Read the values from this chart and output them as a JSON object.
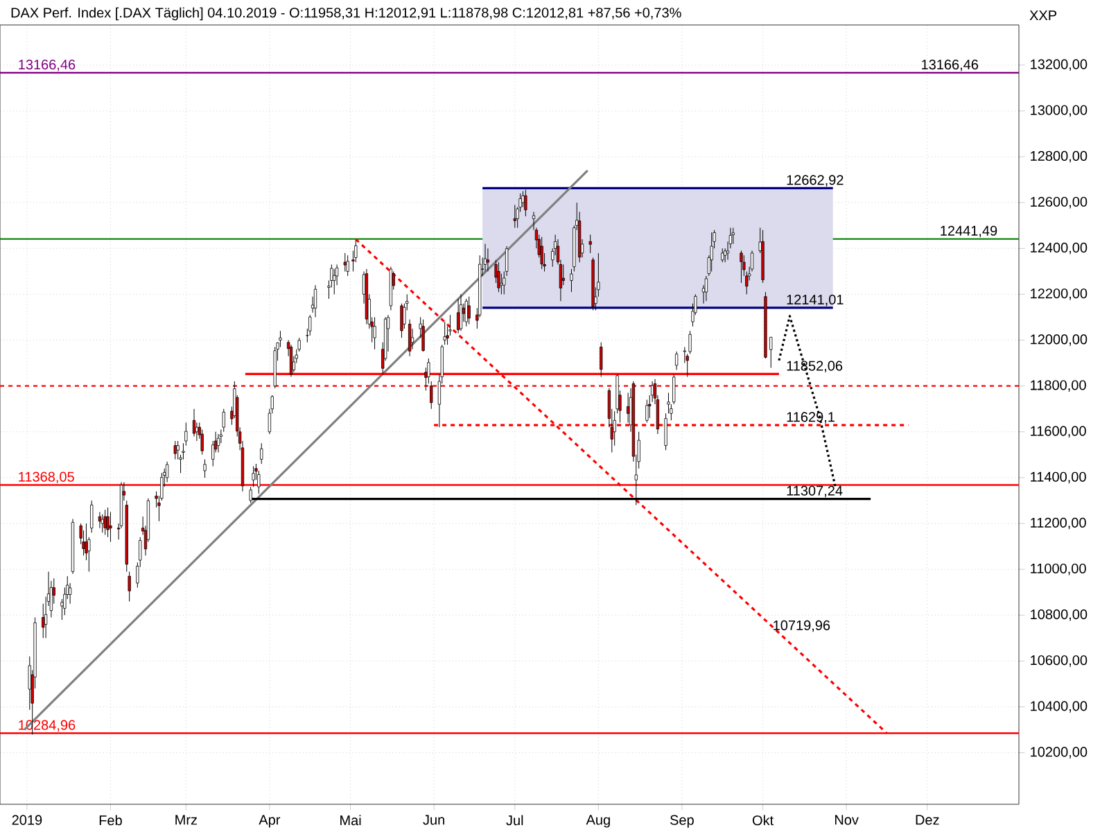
{
  "chart_data": {
    "type": "candlestick",
    "title": "DAX Perf. Index [.DAX  Täglich] 04.10.2019 - O:11958,31 H:12012,91 L:11878,98 C:12012,81 +87,56 +0,73%",
    "ylabel": "XXP",
    "xlim": [
      "2018-12-22",
      "2020-01-04"
    ],
    "ylim": [
      9975,
      13375
    ],
    "xticks": [
      {
        "value": "2019-01-01",
        "label": "2019"
      },
      {
        "value": "2019-02-01",
        "label": "Feb"
      },
      {
        "value": "2019-03-01",
        "label": "Mrz"
      },
      {
        "value": "2019-04-01",
        "label": "Apr"
      },
      {
        "value": "2019-05-01",
        "label": "Mai"
      },
      {
        "value": "2019-06-01",
        "label": "Jun"
      },
      {
        "value": "2019-07-01",
        "label": "Jul"
      },
      {
        "value": "2019-08-01",
        "label": "Aug"
      },
      {
        "value": "2019-09-01",
        "label": "Sep"
      },
      {
        "value": "2019-10-01",
        "label": "Okt"
      },
      {
        "value": "2019-11-01",
        "label": "Nov"
      },
      {
        "value": "2019-12-01",
        "label": "Dez"
      }
    ],
    "yticks": [
      {
        "value": 10200,
        "label": "10200,00"
      },
      {
        "value": 10400,
        "label": "10400,00"
      },
      {
        "value": 10600,
        "label": "10600,00"
      },
      {
        "value": 10800,
        "label": "10800,00"
      },
      {
        "value": 11000,
        "label": "11000,00"
      },
      {
        "value": 11200,
        "label": "11200,00"
      },
      {
        "value": 11400,
        "label": "11400,00"
      },
      {
        "value": 11600,
        "label": "11600,00"
      },
      {
        "value": 11800,
        "label": "11800,00"
      },
      {
        "value": 12000,
        "label": "12000,00"
      },
      {
        "value": 12200,
        "label": "12200,00"
      },
      {
        "value": 12400,
        "label": "12400,00"
      },
      {
        "value": 12600,
        "label": "12600,00"
      },
      {
        "value": 12800,
        "label": "12800,00"
      },
      {
        "value": 13000,
        "label": "13000,00"
      },
      {
        "value": 13200,
        "label": "13200,00"
      }
    ],
    "grid": true,
    "x": [
      "2019-01-02",
      "2019-01-03",
      "2019-01-04",
      "2019-01-07",
      "2019-01-08",
      "2019-01-09",
      "2019-01-10",
      "2019-01-11",
      "2019-01-14",
      "2019-01-15",
      "2019-01-16",
      "2019-01-17",
      "2019-01-18",
      "2019-01-21",
      "2019-01-22",
      "2019-01-23",
      "2019-01-24",
      "2019-01-25",
      "2019-01-28",
      "2019-01-29",
      "2019-01-30",
      "2019-01-31",
      "2019-02-01",
      "2019-02-04",
      "2019-02-05",
      "2019-02-06",
      "2019-02-07",
      "2019-02-08",
      "2019-02-11",
      "2019-02-12",
      "2019-02-13",
      "2019-02-14",
      "2019-02-15",
      "2019-02-18",
      "2019-02-19",
      "2019-02-20",
      "2019-02-21",
      "2019-02-22",
      "2019-02-25",
      "2019-02-26",
      "2019-02-27",
      "2019-02-28",
      "2019-03-01",
      "2019-03-04",
      "2019-03-05",
      "2019-03-06",
      "2019-03-07",
      "2019-03-08",
      "2019-03-11",
      "2019-03-12",
      "2019-03-13",
      "2019-03-14",
      "2019-03-15",
      "2019-03-18",
      "2019-03-19",
      "2019-03-20",
      "2019-03-21",
      "2019-03-22",
      "2019-03-25",
      "2019-03-26",
      "2019-03-27",
      "2019-03-28",
      "2019-03-29",
      "2019-04-01",
      "2019-04-02",
      "2019-04-03",
      "2019-04-04",
      "2019-04-05",
      "2019-04-08",
      "2019-04-09",
      "2019-04-10",
      "2019-04-11",
      "2019-04-12",
      "2019-04-15",
      "2019-04-16",
      "2019-04-17",
      "2019-04-18",
      "2019-04-23",
      "2019-04-24",
      "2019-04-25",
      "2019-04-26",
      "2019-04-29",
      "2019-04-30",
      "2019-05-02",
      "2019-05-03",
      "2019-05-06",
      "2019-05-07",
      "2019-05-08",
      "2019-05-09",
      "2019-05-10",
      "2019-05-13",
      "2019-05-14",
      "2019-05-15",
      "2019-05-16",
      "2019-05-17",
      "2019-05-20",
      "2019-05-21",
      "2019-05-22",
      "2019-05-23",
      "2019-05-24",
      "2019-05-27",
      "2019-05-28",
      "2019-05-29",
      "2019-05-30",
      "2019-05-31",
      "2019-06-03",
      "2019-06-04",
      "2019-06-05",
      "2019-06-06",
      "2019-06-07",
      "2019-06-10",
      "2019-06-11",
      "2019-06-12",
      "2019-06-13",
      "2019-06-14",
      "2019-06-17",
      "2019-06-18",
      "2019-06-19",
      "2019-06-20",
      "2019-06-21",
      "2019-06-24",
      "2019-06-25",
      "2019-06-26",
      "2019-06-27",
      "2019-06-28",
      "2019-07-01",
      "2019-07-02",
      "2019-07-03",
      "2019-07-04",
      "2019-07-05",
      "2019-07-08",
      "2019-07-09",
      "2019-07-10",
      "2019-07-11",
      "2019-07-12",
      "2019-07-15",
      "2019-07-16",
      "2019-07-17",
      "2019-07-18",
      "2019-07-19",
      "2019-07-22",
      "2019-07-23",
      "2019-07-24",
      "2019-07-25",
      "2019-07-26",
      "2019-07-29",
      "2019-07-30",
      "2019-07-31",
      "2019-08-01",
      "2019-08-02",
      "2019-08-05",
      "2019-08-06",
      "2019-08-07",
      "2019-08-08",
      "2019-08-09",
      "2019-08-12",
      "2019-08-13",
      "2019-08-14",
      "2019-08-15",
      "2019-08-16",
      "2019-08-19",
      "2019-08-20",
      "2019-08-21",
      "2019-08-22",
      "2019-08-23",
      "2019-08-26",
      "2019-08-27",
      "2019-08-28",
      "2019-08-29",
      "2019-08-30",
      "2019-09-02",
      "2019-09-03",
      "2019-09-04",
      "2019-09-05",
      "2019-09-06",
      "2019-09-09",
      "2019-09-10",
      "2019-09-11",
      "2019-09-12",
      "2019-09-13",
      "2019-09-16",
      "2019-09-17",
      "2019-09-18",
      "2019-09-19",
      "2019-09-20",
      "2019-09-23",
      "2019-09-24",
      "2019-09-25",
      "2019-09-26",
      "2019-09-27",
      "2019-09-30",
      "2019-10-01",
      "2019-10-02",
      "2019-10-04"
    ],
    "ohlc": [
      [
        10477,
        10620,
        10387,
        10580
      ],
      [
        10540,
        10560,
        10279,
        10416
      ],
      [
        10530,
        10790,
        10480,
        10767
      ],
      [
        10790,
        10850,
        10700,
        10747
      ],
      [
        10760,
        10880,
        10700,
        10803
      ],
      [
        10860,
        10990,
        10840,
        10893
      ],
      [
        10820,
        10950,
        10790,
        10921
      ],
      [
        10920,
        10960,
        10850,
        10887
      ],
      [
        10840,
        10870,
        10780,
        10856
      ],
      [
        10830,
        10920,
        10800,
        10891
      ],
      [
        10890,
        10970,
        10870,
        10931
      ],
      [
        10890,
        10940,
        10850,
        10919
      ],
      [
        10990,
        11220,
        10980,
        11205
      ],
      [
        11190,
        11200,
        11110,
        11136
      ],
      [
        11120,
        11170,
        11060,
        11090
      ],
      [
        11120,
        11200,
        11040,
        11071
      ],
      [
        11080,
        11140,
        10990,
        11130
      ],
      [
        11180,
        11300,
        11160,
        11281
      ],
      [
        11230,
        11250,
        11180,
        11210
      ],
      [
        11200,
        11240,
        11160,
        11218
      ],
      [
        11230,
        11260,
        11150,
        11181
      ],
      [
        11230,
        11270,
        11140,
        11173
      ],
      [
        11190,
        11250,
        11120,
        11180
      ],
      [
        11180,
        11200,
        11130,
        11176
      ],
      [
        11190,
        11380,
        11180,
        11367
      ],
      [
        11340,
        11380,
        11300,
        11324
      ],
      [
        11280,
        11300,
        10990,
        11022
      ],
      [
        10970,
        10990,
        10860,
        10906
      ],
      [
        10940,
        11030,
        10920,
        11014
      ],
      [
        11040,
        11140,
        11010,
        11126
      ],
      [
        11180,
        11230,
        11150,
        11167
      ],
      [
        11170,
        11190,
        11060,
        11089
      ],
      [
        11130,
        11310,
        11120,
        11299
      ],
      [
        11320,
        11340,
        11270,
        11309
      ],
      [
        11290,
        11320,
        11210,
        11278
      ],
      [
        11310,
        11420,
        11300,
        11401
      ],
      [
        11410,
        11440,
        11360,
        11423
      ],
      [
        11400,
        11470,
        11380,
        11457
      ],
      [
        11540,
        11560,
        11480,
        11505
      ],
      [
        11520,
        11560,
        11480,
        11540
      ],
      [
        11480,
        11500,
        11420,
        11487
      ],
      [
        11510,
        11550,
        11480,
        11515
      ],
      [
        11560,
        11640,
        11540,
        11602
      ],
      [
        11650,
        11700,
        11580,
        11593
      ],
      [
        11600,
        11640,
        11560,
        11620
      ],
      [
        11620,
        11640,
        11570,
        11587
      ],
      [
        11590,
        11610,
        11500,
        11517
      ],
      [
        11430,
        11480,
        11400,
        11458
      ],
      [
        11480,
        11560,
        11450,
        11543
      ],
      [
        11560,
        11600,
        11510,
        11524
      ],
      [
        11540,
        11590,
        11510,
        11572
      ],
      [
        11580,
        11610,
        11550,
        11587
      ],
      [
        11620,
        11700,
        11600,
        11686
      ],
      [
        11690,
        11710,
        11630,
        11657
      ],
      [
        11670,
        11820,
        11660,
        11788
      ],
      [
        11750,
        11760,
        11580,
        11603
      ],
      [
        11600,
        11620,
        11520,
        11550
      ],
      [
        11530,
        11560,
        11340,
        11364
      ],
      [
        11300,
        11360,
        11290,
        11346
      ],
      [
        11390,
        11450,
        11360,
        11419
      ],
      [
        11440,
        11460,
        11390,
        11428
      ],
      [
        11360,
        11430,
        11330,
        11414
      ],
      [
        11480,
        11550,
        11460,
        11526
      ],
      [
        11600,
        11700,
        11590,
        11681
      ],
      [
        11700,
        11760,
        11680,
        11754
      ],
      [
        11800,
        11970,
        11790,
        11954
      ],
      [
        11960,
        11990,
        11910,
        11988
      ],
      [
        12000,
        12040,
        11970,
        12010
      ],
      [
        11990,
        12000,
        11930,
        11963
      ],
      [
        11970,
        11980,
        11840,
        11850
      ],
      [
        11870,
        11930,
        11860,
        11905
      ],
      [
        11920,
        11960,
        11900,
        11935
      ],
      [
        11960,
        12010,
        11950,
        11999
      ],
      [
        12020,
        12050,
        11990,
        12020
      ],
      [
        12040,
        12110,
        12020,
        12101
      ],
      [
        12140,
        12190,
        12120,
        12153
      ],
      [
        12140,
        12240,
        12100,
        12222
      ],
      [
        12230,
        12260,
        12180,
        12236
      ],
      [
        12260,
        12330,
        12230,
        12313
      ],
      [
        12260,
        12310,
        12200,
        12282
      ],
      [
        12280,
        12330,
        12240,
        12315
      ],
      [
        12340,
        12380,
        12300,
        12328
      ],
      [
        12300,
        12370,
        12280,
        12344
      ],
      [
        12350,
        12390,
        12300,
        12345
      ],
      [
        12360,
        12436,
        12340,
        12412
      ],
      [
        12200,
        12300,
        12160,
        12286
      ],
      [
        12290,
        12310,
        12070,
        12092
      ],
      [
        12070,
        12200,
        12050,
        12179
      ],
      [
        12080,
        12100,
        11990,
        12059
      ],
      [
        12010,
        12100,
        11960,
        12060
      ],
      [
        11960,
        11990,
        11850,
        11877
      ],
      [
        11920,
        12100,
        11910,
        12092
      ],
      [
        12050,
        12110,
        11950,
        12099
      ],
      [
        12150,
        12320,
        12130,
        12310
      ],
      [
        12290,
        12300,
        12220,
        12238
      ],
      [
        12150,
        12160,
        12010,
        12041
      ],
      [
        12070,
        12160,
        12050,
        12143
      ],
      [
        12160,
        12200,
        12130,
        12169
      ],
      [
        12070,
        12090,
        11930,
        11952
      ],
      [
        11990,
        12050,
        11960,
        12011
      ],
      [
        12050,
        12100,
        12010,
        12071
      ],
      [
        12060,
        12090,
        11950,
        11954
      ],
      [
        11860,
        11880,
        11780,
        11837
      ],
      [
        11840,
        11920,
        11810,
        11902
      ],
      [
        11800,
        11820,
        11700,
        11727
      ],
      [
        11720,
        11850,
        11620,
        11820
      ],
      [
        11840,
        11980,
        11810,
        11971
      ],
      [
        12000,
        12080,
        11980,
        12015
      ],
      [
        12020,
        12060,
        11980,
        12009
      ],
      [
        12040,
        12110,
        12020,
        12045
      ],
      [
        12120,
        12180,
        12030,
        12045
      ],
      [
        12050,
        12200,
        12040,
        12155
      ],
      [
        12140,
        12160,
        12080,
        12116
      ],
      [
        12080,
        12180,
        12060,
        12170
      ],
      [
        12150,
        12190,
        12070,
        12096
      ],
      [
        12110,
        12140,
        12050,
        12086
      ],
      [
        12110,
        12370,
        12100,
        12331
      ],
      [
        12310,
        12360,
        12280,
        12309
      ],
      [
        12330,
        12420,
        12300,
        12355
      ],
      [
        12350,
        12400,
        12300,
        12340
      ],
      [
        12330,
        12350,
        12250,
        12274
      ],
      [
        12300,
        12340,
        12210,
        12228
      ],
      [
        12240,
        12290,
        12200,
        12248
      ],
      [
        12240,
        12300,
        12200,
        12271
      ],
      [
        12300,
        12410,
        12280,
        12399
      ],
      [
        12530,
        12590,
        12490,
        12521
      ],
      [
        12530,
        12580,
        12490,
        12573
      ],
      [
        12580,
        12640,
        12560,
        12617
      ],
      [
        12600,
        12650,
        12580,
        12630
      ],
      [
        12630,
        12656,
        12540,
        12568
      ],
      [
        12530,
        12560,
        12480,
        12543
      ],
      [
        12480,
        12490,
        12400,
        12437
      ],
      [
        12440,
        12460,
        12360,
        12373
      ],
      [
        12410,
        12450,
        12310,
        12332
      ],
      [
        12330,
        12380,
        12300,
        12323
      ],
      [
        12350,
        12400,
        12320,
        12387
      ],
      [
        12400,
        12460,
        12370,
        12430
      ],
      [
        12410,
        12440,
        12330,
        12341
      ],
      [
        12330,
        12350,
        12170,
        12227
      ],
      [
        12270,
        12330,
        12240,
        12260
      ],
      [
        12260,
        12310,
        12210,
        12289
      ],
      [
        12320,
        12500,
        12300,
        12490
      ],
      [
        12500,
        12600,
        12480,
        12523
      ],
      [
        12520,
        12560,
        12340,
        12362
      ],
      [
        12380,
        12440,
        12360,
        12419
      ],
      [
        12430,
        12460,
        12380,
        12418
      ],
      [
        12350,
        12360,
        12130,
        12147
      ],
      [
        12160,
        12230,
        12130,
        12189
      ],
      [
        12220,
        12380,
        12190,
        12253
      ],
      [
        11970,
        11990,
        11840,
        11872
      ],
      [
        11780,
        11790,
        11620,
        11658
      ],
      [
        11620,
        11700,
        11510,
        11568
      ],
      [
        11600,
        11690,
        11540,
        11650
      ],
      [
        11700,
        11850,
        11680,
        11845
      ],
      [
        11760,
        11780,
        11640,
        11693
      ],
      [
        11710,
        11770,
        11640,
        11680
      ],
      [
        11630,
        11790,
        11600,
        11750
      ],
      [
        11810,
        11820,
        11470,
        11493
      ],
      [
        11390,
        11500,
        11280,
        11412
      ],
      [
        11470,
        11600,
        11440,
        11563
      ],
      [
        11650,
        11740,
        11640,
        11715
      ],
      [
        11720,
        11760,
        11660,
        11713
      ],
      [
        11760,
        11820,
        11730,
        11802
      ],
      [
        11810,
        11830,
        11720,
        11747
      ],
      [
        11740,
        11760,
        11590,
        11612
      ],
      [
        11540,
        11680,
        11520,
        11658
      ],
      [
        11720,
        11770,
        11680,
        11730
      ],
      [
        11680,
        11720,
        11650,
        11701
      ],
      [
        11730,
        11850,
        11720,
        11839
      ],
      [
        11890,
        11950,
        11870,
        11939
      ],
      [
        11950,
        11970,
        11900,
        11953
      ],
      [
        11930,
        11940,
        11840,
        11911
      ],
      [
        11950,
        12040,
        11940,
        12025
      ],
      [
        12080,
        12160,
        12060,
        12126
      ],
      [
        12120,
        12200,
        12110,
        12191
      ],
      [
        12210,
        12240,
        12160,
        12226
      ],
      [
        12210,
        12280,
        12170,
        12268
      ],
      [
        12290,
        12370,
        12280,
        12360
      ],
      [
        12350,
        12470,
        12300,
        12410
      ],
      [
        12430,
        12480,
        12400,
        12469
      ],
      [
        12350,
        12400,
        12340,
        12380
      ],
      [
        12370,
        12400,
        12340,
        12389
      ],
      [
        12380,
        12430,
        12350,
        12389
      ],
      [
        12420,
        12490,
        12400,
        12457
      ],
      [
        12460,
        12490,
        12420,
        12468
      ],
      [
        12380,
        12390,
        12250,
        12342
      ],
      [
        12340,
        12370,
        12280,
        12307
      ],
      [
        12280,
        12300,
        12200,
        12235
      ],
      [
        12280,
        12320,
        12260,
        12289
      ],
      [
        12310,
        12390,
        12300,
        12380
      ],
      [
        12390,
        12490,
        12380,
        12428
      ],
      [
        12430,
        12480,
        12250,
        12263
      ],
      [
        12190,
        12210,
        11920,
        11925
      ],
      [
        11958.31,
        12012.91,
        11878.98,
        12012.81
      ]
    ],
    "series": [
      {
        "type": "line",
        "color": "#000080",
        "x": [
          "2019-06-19",
          "2019-10-27"
        ],
        "values": [
          12662.92,
          12662.92
        ],
        "lower": [
          12141.01,
          12141.01
        ],
        "upper": [
          12662.92,
          12662.92
        ]
      },
      {
        "type": "line",
        "color": "#000080",
        "x": [
          "2019-06-19",
          "2019-10-27"
        ],
        "values": [
          12141.01,
          12141.01
        ]
      },
      {
        "type": "line",
        "color": "#808080",
        "x": [
          "2018-12-31",
          "2019-07-28"
        ],
        "values": [
          10300,
          12740
        ]
      },
      {
        "type": "line",
        "color": "#ff0000",
        "line_style": "dashed",
        "x": [
          "2019-05-03",
          "2019-11-16"
        ],
        "values": [
          12440,
          10284.96
        ]
      },
      {
        "type": "line",
        "color": "#ff0000",
        "x": [
          "2019-03-23",
          "2019-10-07"
        ],
        "values": [
          11852.06,
          11852.06
        ]
      },
      {
        "type": "line",
        "color": "#ff0000",
        "line_style": "dashed",
        "x": [
          "2019-06-01",
          "2019-11-24"
        ],
        "values": [
          11629.1,
          11629.1
        ]
      },
      {
        "type": "line",
        "color": "#000000",
        "x": [
          "2019-03-25",
          "2019-11-10"
        ],
        "values": [
          11307.24,
          11307.24
        ]
      },
      {
        "type": "line",
        "color": "#000000",
        "line_style": "dotted",
        "x": [
          "2019-10-07",
          "2019-10-11",
          "2019-10-22",
          "2019-10-28"
        ],
        "values": [
          11911,
          12105,
          11670,
          11355
        ]
      }
    ],
    "ref_lines": [
      {
        "axis": "y",
        "value": 13166.46,
        "label": "13166,46",
        "color": "#800080"
      },
      {
        "axis": "y",
        "value": 12441.49,
        "color": "#008000"
      },
      {
        "axis": "y",
        "value": 11800,
        "color": "#ff0000",
        "line_style": "dashed"
      },
      {
        "axis": "y",
        "value": 11368.05,
        "label": "11368,05",
        "color": "#ff0000"
      },
      {
        "axis": "y",
        "value": 10284.96,
        "label": "10284,96",
        "color": "#ff0000"
      }
    ],
    "annotations": [
      {
        "text": "13166,46",
        "x": "2019-11-28",
        "y": 13166.46
      },
      {
        "text": "12441,49",
        "x": "2019-12-05",
        "y": 12441.49
      },
      {
        "text": "12662,92",
        "x": "2019-10-09",
        "y": 12662.92
      },
      {
        "text": "12141,01",
        "x": "2019-10-09",
        "y": 12141.01
      },
      {
        "text": "11852,06",
        "x": "2019-10-09",
        "y": 11852.06
      },
      {
        "text": "11629,1",
        "x": "2019-10-09",
        "y": 11629.1
      },
      {
        "text": "11307,24",
        "x": "2019-10-09",
        "y": 11307.24
      },
      {
        "text": "10719,96",
        "x": "2019-10-04",
        "y": 10719.96
      }
    ]
  }
}
